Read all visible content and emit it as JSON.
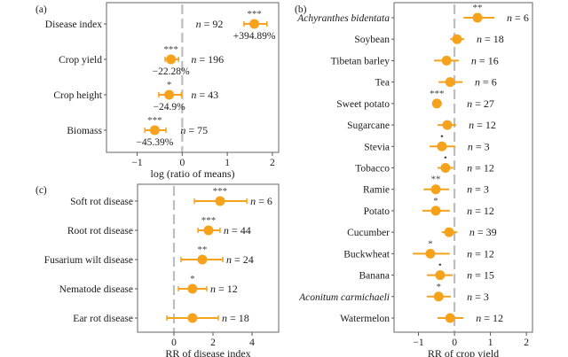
{
  "colors": {
    "point": "#F6A21C",
    "zero_line": "#BDBDBD",
    "frame": "#7F7F7F"
  },
  "chart_data": [
    {
      "id": "a",
      "panel_label": "(a)",
      "type": "forest",
      "xlabel": "log (ratio of means)",
      "xlim": [
        -1.68,
        2.14
      ],
      "xticks": [
        -1,
        0,
        1,
        2
      ],
      "xtick_labels": [
        "−1",
        "0",
        "1",
        "2"
      ],
      "reference_line": 0,
      "grid": false,
      "rows": [
        {
          "label": "Disease index",
          "italic": false,
          "est": 1.6,
          "lo": 1.37,
          "hi": 1.88,
          "n_label": "n = 92",
          "sig": "***",
          "pct": "+394.89%",
          "caps": true
        },
        {
          "label": "Crop yield",
          "italic": false,
          "est": -0.25,
          "lo": -0.38,
          "hi": -0.08,
          "n_label": "n = 196",
          "sig": "***",
          "pct": "−22.28%",
          "caps": true
        },
        {
          "label": "Crop height",
          "italic": false,
          "est": -0.29,
          "lo": -0.52,
          "hi": -0.02,
          "n_label": "n = 43",
          "sig": "*",
          "pct": "−24.9%",
          "caps": true
        },
        {
          "label": "Biomass",
          "italic": false,
          "est": -0.61,
          "lo": -0.83,
          "hi": -0.36,
          "n_label": "n = 75",
          "sig": "***",
          "pct": "−45.39%",
          "caps": true
        }
      ]
    },
    {
      "id": "b",
      "panel_label": "(b)",
      "type": "forest",
      "xlabel": "RR of crop yield",
      "xlim": [
        -1.68,
        2.17
      ],
      "xticks": [
        -1,
        0,
        1,
        2
      ],
      "xtick_labels": [
        "−1",
        "0",
        "1",
        "2"
      ],
      "reference_line": 0,
      "grid": false,
      "rows": [
        {
          "label": "Achyranthes bidentata",
          "italic": true,
          "est": 0.64,
          "lo": 0.25,
          "hi": 1.11,
          "n_label": "n = 6",
          "sig": "**",
          "caps": false
        },
        {
          "label": "Soybean",
          "italic": false,
          "est": 0.07,
          "lo": -0.12,
          "hi": 0.27,
          "n_label": "n = 18",
          "sig": "",
          "caps": false
        },
        {
          "label": "Tibetan barley",
          "italic": false,
          "est": -0.22,
          "lo": -0.57,
          "hi": 0.12,
          "n_label": "n = 16",
          "sig": "",
          "caps": false
        },
        {
          "label": "Tea",
          "italic": false,
          "est": -0.12,
          "lo": -0.44,
          "hi": 0.22,
          "n_label": "n = 6",
          "sig": "",
          "caps": false
        },
        {
          "label": "Sweet potato",
          "italic": false,
          "est": -0.49,
          "lo": -0.62,
          "hi": -0.35,
          "n_label": "n = 27",
          "sig": "***",
          "caps": false
        },
        {
          "label": "Sugarcane",
          "italic": false,
          "est": -0.2,
          "lo": -0.47,
          "hi": 0.05,
          "n_label": "n = 12",
          "sig": "",
          "caps": false
        },
        {
          "label": "Stevia",
          "italic": false,
          "est": -0.35,
          "lo": -0.69,
          "hi": 0.02,
          "n_label": "n = 3",
          "sig": "•",
          "caps": false
        },
        {
          "label": "Tobacco",
          "italic": false,
          "est": -0.25,
          "lo": -0.47,
          "hi": -0.03,
          "n_label": "n = 12",
          "sig": "•",
          "caps": false
        },
        {
          "label": "Ramie",
          "italic": false,
          "est": -0.52,
          "lo": -0.86,
          "hi": -0.15,
          "n_label": "n = 3",
          "sig": "**",
          "caps": false
        },
        {
          "label": "Potato",
          "italic": false,
          "est": -0.52,
          "lo": -0.89,
          "hi": -0.13,
          "n_label": "n = 12",
          "sig": "*",
          "caps": false
        },
        {
          "label": "Cucumber",
          "italic": false,
          "est": -0.15,
          "lo": -0.35,
          "hi": 0.07,
          "n_label": "n = 39",
          "sig": "",
          "caps": false
        },
        {
          "label": "Buckwheat",
          "italic": false,
          "est": -0.67,
          "lo": -1.16,
          "hi": -0.13,
          "n_label": "n = 12",
          "sig": "*",
          "caps": false
        },
        {
          "label": "Banana",
          "italic": false,
          "est": -0.4,
          "lo": -0.77,
          "hi": -0.05,
          "n_label": "n = 15",
          "sig": "•",
          "caps": false
        },
        {
          "label": "Aconitum carmichaeli",
          "italic": true,
          "est": -0.44,
          "lo": -0.77,
          "hi": -0.1,
          "n_label": "n = 3",
          "sig": "*",
          "caps": false
        },
        {
          "label": "Watermelon",
          "italic": false,
          "est": -0.12,
          "lo": -0.47,
          "hi": 0.25,
          "n_label": "n = 12",
          "sig": "",
          "caps": false
        }
      ]
    },
    {
      "id": "c",
      "panel_label": "(c)",
      "type": "forest",
      "xlabel": "RR of disease index",
      "xlim": [
        -1.86,
        5.36
      ],
      "xticks": [
        0,
        2,
        4
      ],
      "xtick_labels": [
        "0",
        "2",
        "4"
      ],
      "reference_line": 0,
      "grid": false,
      "rows": [
        {
          "label": "Soft rot disease",
          "italic": false,
          "est": 2.36,
          "lo": 1.05,
          "hi": 3.73,
          "n_label": "n = 6",
          "sig": "***",
          "caps": true
        },
        {
          "label": "Root rot disease",
          "italic": false,
          "est": 1.77,
          "lo": 1.23,
          "hi": 2.36,
          "n_label": "n = 44",
          "sig": "***",
          "caps": true
        },
        {
          "label": "Fusarium wilt disease",
          "italic": false,
          "est": 1.45,
          "lo": 0.36,
          "hi": 2.5,
          "n_label": "n = 24",
          "sig": "**",
          "caps": true
        },
        {
          "label": "Nematode disease",
          "italic": false,
          "est": 0.95,
          "lo": 0.23,
          "hi": 1.68,
          "n_label": "n = 12",
          "sig": "*",
          "caps": true
        },
        {
          "label": "Ear rot disease",
          "italic": false,
          "est": 0.95,
          "lo": -0.36,
          "hi": 2.27,
          "n_label": "n = 18",
          "sig": "",
          "caps": true
        }
      ]
    }
  ]
}
